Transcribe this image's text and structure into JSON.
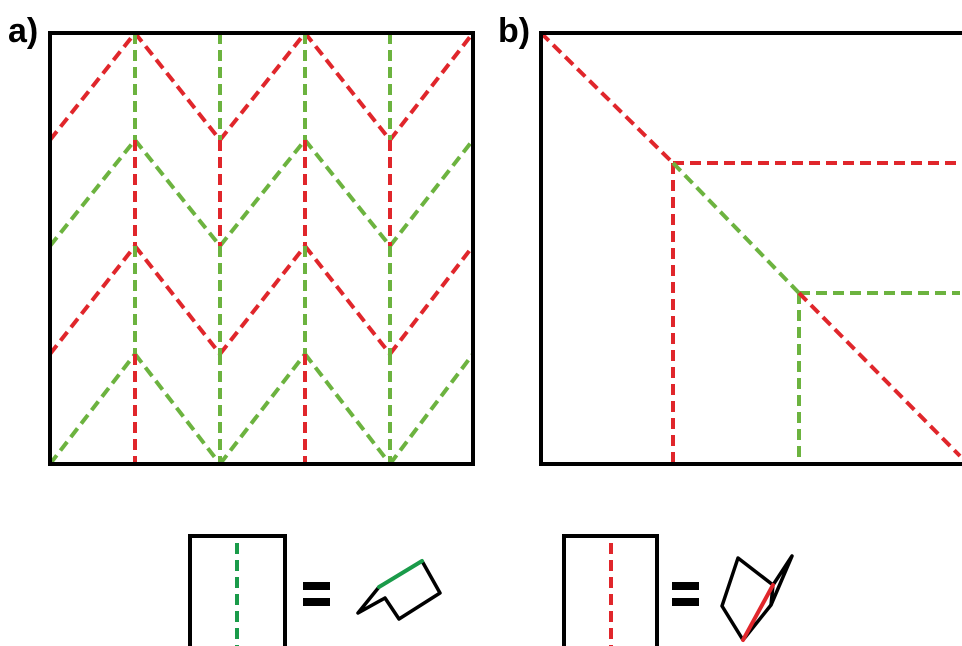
{
  "panels": [
    {
      "label": "a)"
    },
    {
      "label": "b)"
    }
  ],
  "colors": {
    "mountain_fold": "#e0262b",
    "valley_fold": "#6cb33f",
    "legend_valley": "#1a9b4a",
    "frame": "#000000"
  },
  "legend": [
    {
      "fold": "valley",
      "icon": "valley-fold-icon"
    },
    {
      "fold": "mountain",
      "icon": "mountain-fold-icon"
    }
  ]
}
